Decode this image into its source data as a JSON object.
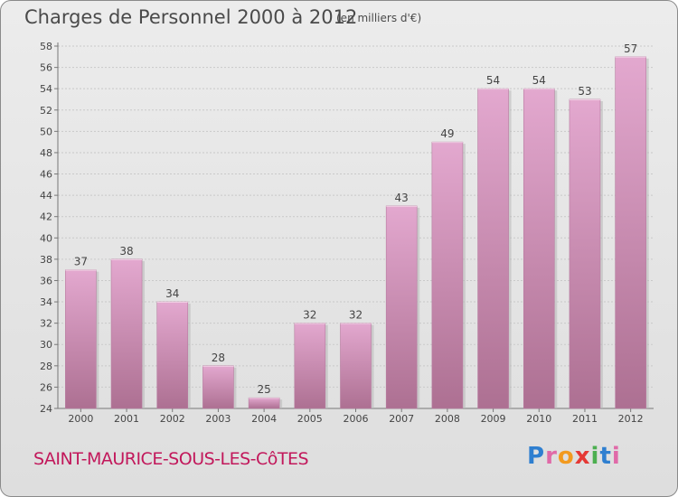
{
  "header": {
    "title": "Charges de Personnel 2000 à 2012",
    "subtitle": "(en milliers d'€)"
  },
  "footer": {
    "location": "SAINT-MAURICE-SOUS-LES-CôTES",
    "logo_text": "Proxiti"
  },
  "colors": {
    "bar_top": "#e3a8cf",
    "bar_bottom": "#ad7092",
    "location_text": "#c2185b",
    "logo_letters": [
      "#2f7fd0",
      "#e06aa8",
      "#f29a1f",
      "#e53935",
      "#4caf50",
      "#2f7fd0",
      "#e06aa8"
    ]
  },
  "chart_data": {
    "type": "bar",
    "title": "Charges de Personnel 2000 à 2012",
    "subtitle": "(en milliers d'€)",
    "xlabel": "",
    "ylabel": "",
    "categories": [
      "2000",
      "2001",
      "2002",
      "2003",
      "2004",
      "2005",
      "2006",
      "2007",
      "2008",
      "2009",
      "2010",
      "2011",
      "2012"
    ],
    "values": [
      37,
      38,
      34,
      28,
      25,
      32,
      32,
      43,
      49,
      54,
      54,
      53,
      57
    ],
    "ylim": [
      24,
      58
    ],
    "yticks": [
      24,
      26,
      28,
      30,
      32,
      34,
      36,
      38,
      40,
      42,
      44,
      46,
      48,
      50,
      52,
      54,
      56,
      58
    ],
    "grid": true,
    "legend": "none"
  }
}
